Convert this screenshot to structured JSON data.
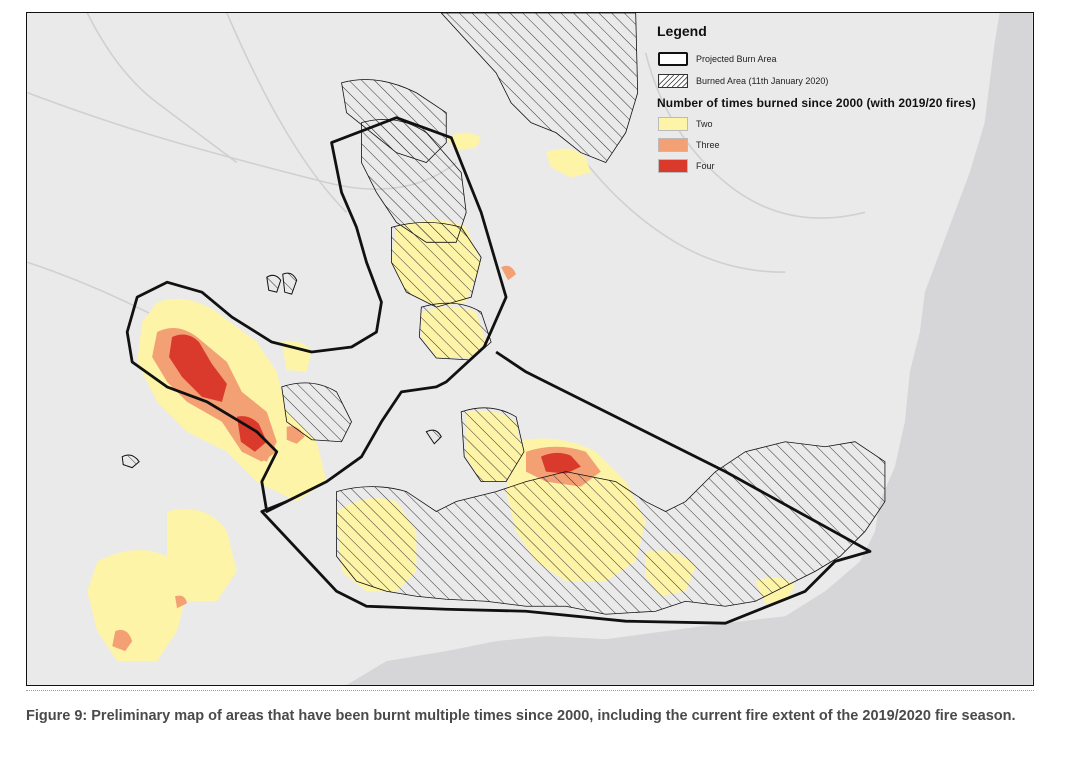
{
  "legend": {
    "title": "Legend",
    "items": [
      {
        "label": "Projected Burn Area",
        "swatch": "outline"
      },
      {
        "label": "Burned Area (11th January 2020)",
        "swatch": "hatch"
      }
    ],
    "subtitle": "Number of times burned since 2000 (with 2019/20 fires)",
    "classes": [
      {
        "label": "Two",
        "color": "#fdf4a8"
      },
      {
        "label": "Three",
        "color": "#f3a074"
      },
      {
        "label": "Four",
        "color": "#d93a2b"
      }
    ]
  },
  "caption": "Figure 9: Preliminary map of areas that have been burnt multiple times since 2000, including the current fire extent of the 2019/2020 fire season.",
  "colors": {
    "land": "#eaeaea",
    "ocean": "#d6d6d9",
    "rivers": "#d0d0d0",
    "outline": "#111111",
    "hatch": "#333333"
  }
}
